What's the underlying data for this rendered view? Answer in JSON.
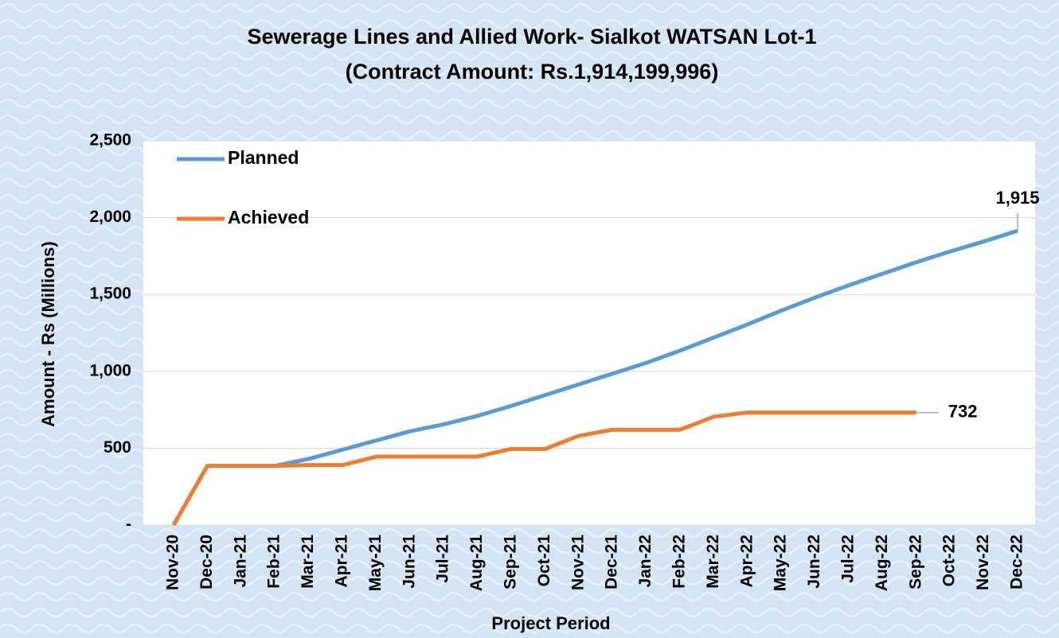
{
  "chart_data": {
    "type": "line",
    "title": "Sewerage Lines and Allied Work- Sialkot WATSAN Lot-1",
    "subtitle": "(Contract Amount: Rs.1,914,199,996)",
    "x_label": "Project Period",
    "y_label": "Amount - Rs (Millions)",
    "categories": [
      "Nov-20",
      "Dec-20",
      "Jan-21",
      "Feb-21",
      "Mar-21",
      "Apr-21",
      "May-21",
      "Jun-21",
      "Jul-21",
      "Aug-21",
      "Sep-21",
      "Oct-21",
      "Nov-21",
      "Dec-21",
      "Jan-22",
      "Feb-22",
      "Mar-22",
      "Apr-22",
      "May-22",
      "Jun-22",
      "Jul-22",
      "Aug-22",
      "Sep-22",
      "Oct-22",
      "Nov-22",
      "Dec-22"
    ],
    "series": [
      {
        "name": "Planned",
        "color": "#5b9bd5",
        "values": [
          0,
          385,
          385,
          385,
          430,
          490,
          550,
          610,
          655,
          710,
          775,
          845,
          915,
          985,
          1055,
          1135,
          1220,
          1305,
          1395,
          1480,
          1560,
          1635,
          1710,
          1780,
          1845,
          1915
        ],
        "value_labels": [
          null,
          null,
          null,
          null,
          null,
          null,
          null,
          null,
          null,
          null,
          null,
          null,
          null,
          null,
          null,
          null,
          null,
          null,
          null,
          null,
          null,
          null,
          null,
          null,
          null,
          "1,915"
        ]
      },
      {
        "name": "Achieved",
        "color": "#ed7d31",
        "values": [
          0,
          385,
          385,
          385,
          390,
          390,
          445,
          445,
          445,
          445,
          495,
          495,
          580,
          620,
          620,
          620,
          705,
          732,
          732,
          732,
          732,
          732,
          732,
          null,
          null,
          null
        ],
        "value_labels": [
          null,
          null,
          null,
          null,
          null,
          null,
          null,
          null,
          null,
          null,
          null,
          null,
          null,
          null,
          null,
          null,
          null,
          null,
          null,
          null,
          null,
          null,
          "732",
          null,
          null,
          null
        ]
      }
    ],
    "ylim": [
      0,
      2500
    ],
    "yticks": [
      {
        "value": 0,
        "label": "-"
      },
      500,
      {
        "value": 1000,
        "label": "1,000"
      },
      {
        "value": 1500,
        "label": "1,500"
      },
      {
        "value": 2000,
        "label": "2,000"
      },
      {
        "value": 2500,
        "label": "2,500"
      }
    ],
    "grid": true,
    "legend": "top-left"
  }
}
